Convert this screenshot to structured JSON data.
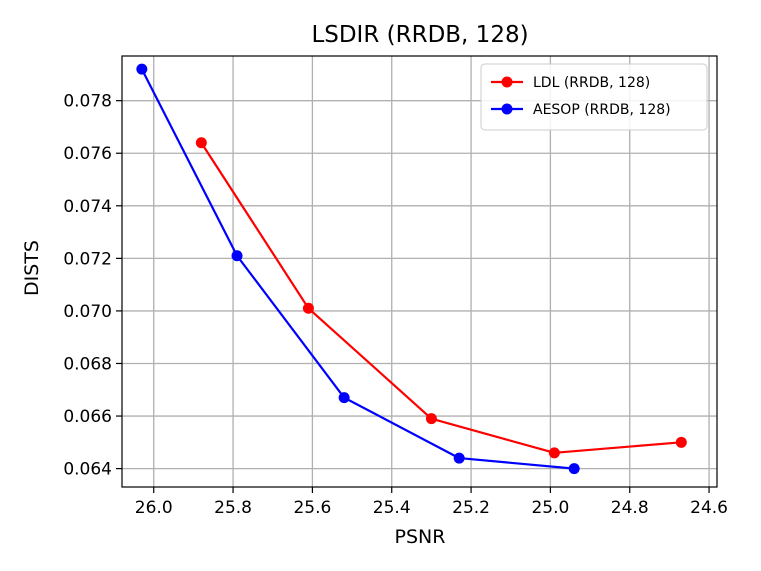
{
  "chart_data": {
    "type": "line",
    "title": "LSDIR (RRDB, 128)",
    "xlabel": "PSNR",
    "ylabel": "DISTS",
    "xlim": [
      26.08,
      24.58
    ],
    "ylim": [
      0.0633,
      0.0797
    ],
    "x_inverted": true,
    "x_ticks": [
      26.0,
      25.8,
      25.6,
      25.4,
      25.2,
      25.0,
      24.8,
      24.6
    ],
    "x_tick_labels": [
      "26.0",
      "25.8",
      "25.6",
      "25.4",
      "25.2",
      "25.0",
      "24.8",
      "24.6"
    ],
    "y_ticks": [
      0.064,
      0.066,
      0.068,
      0.07,
      0.072,
      0.074,
      0.076,
      0.078
    ],
    "y_tick_labels": [
      "0.064",
      "0.066",
      "0.068",
      "0.070",
      "0.072",
      "0.074",
      "0.076",
      "0.078"
    ],
    "grid": true,
    "legend_position": "top-right",
    "series": [
      {
        "name": "LDL (RRDB, 128)",
        "color": "#ff0000",
        "x": [
          25.88,
          25.61,
          25.3,
          24.99,
          24.67
        ],
        "y": [
          0.0764,
          0.0701,
          0.0659,
          0.0646,
          0.065
        ]
      },
      {
        "name": "AESOP (RRDB, 128)",
        "color": "#0000ff",
        "x": [
          26.03,
          25.79,
          25.52,
          25.23,
          24.94
        ],
        "y": [
          0.0792,
          0.0721,
          0.0667,
          0.0644,
          0.064
        ]
      }
    ]
  }
}
